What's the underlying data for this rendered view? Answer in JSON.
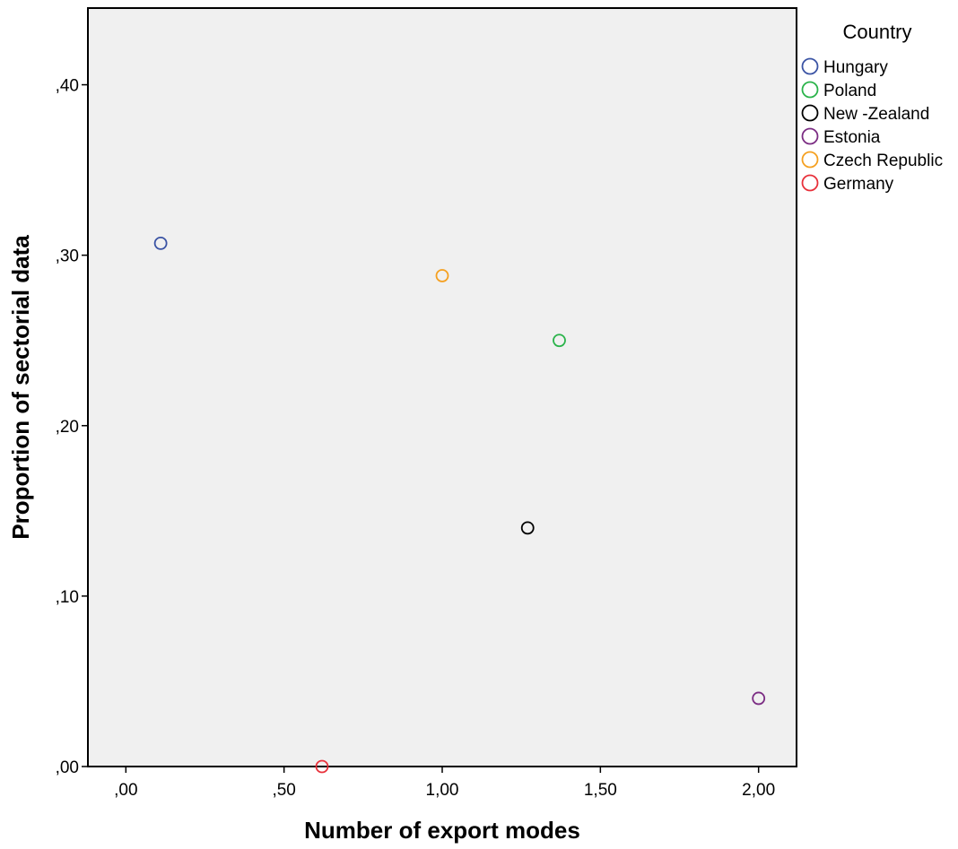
{
  "chart_data": {
    "type": "scatter",
    "title": "",
    "xlabel": "Number of export modes",
    "ylabel": "Proportion of sectorial data",
    "xlim": [
      -0.12,
      2.12
    ],
    "ylim": [
      0,
      0.445
    ],
    "x_ticks": [
      0,
      0.5,
      1,
      1.5,
      2
    ],
    "x_tick_labels": [
      ",00",
      ",50",
      "1,00",
      "1,50",
      "2,00"
    ],
    "y_ticks": [
      0,
      0.1,
      0.2,
      0.3,
      0.4
    ],
    "y_tick_labels": [
      ",00",
      ",10",
      ",20",
      ",30",
      ",40"
    ],
    "grid": false,
    "plot_background": "#f0f0f0",
    "marker": "hollow-circle",
    "legend": {
      "title": "Country",
      "placement": "right"
    },
    "series": [
      {
        "name": "Hungary",
        "color": "#3a53a4",
        "points": [
          {
            "x": 0.11,
            "y": 0.307
          }
        ]
      },
      {
        "name": "Poland",
        "color": "#2ab34a",
        "points": [
          {
            "x": 1.37,
            "y": 0.25
          }
        ]
      },
      {
        "name": "New -Zealand",
        "color": "#000000",
        "points": [
          {
            "x": 1.27,
            "y": 0.14
          }
        ]
      },
      {
        "name": "Estonia",
        "color": "#7b2c83",
        "points": [
          {
            "x": 2.0,
            "y": 0.04
          }
        ]
      },
      {
        "name": "Czech Republic",
        "color": "#f5a020",
        "points": [
          {
            "x": 1.0,
            "y": 0.288
          }
        ]
      },
      {
        "name": "Germany",
        "color": "#e8303a",
        "points": [
          {
            "x": 0.62,
            "y": 0.0
          }
        ]
      }
    ]
  }
}
